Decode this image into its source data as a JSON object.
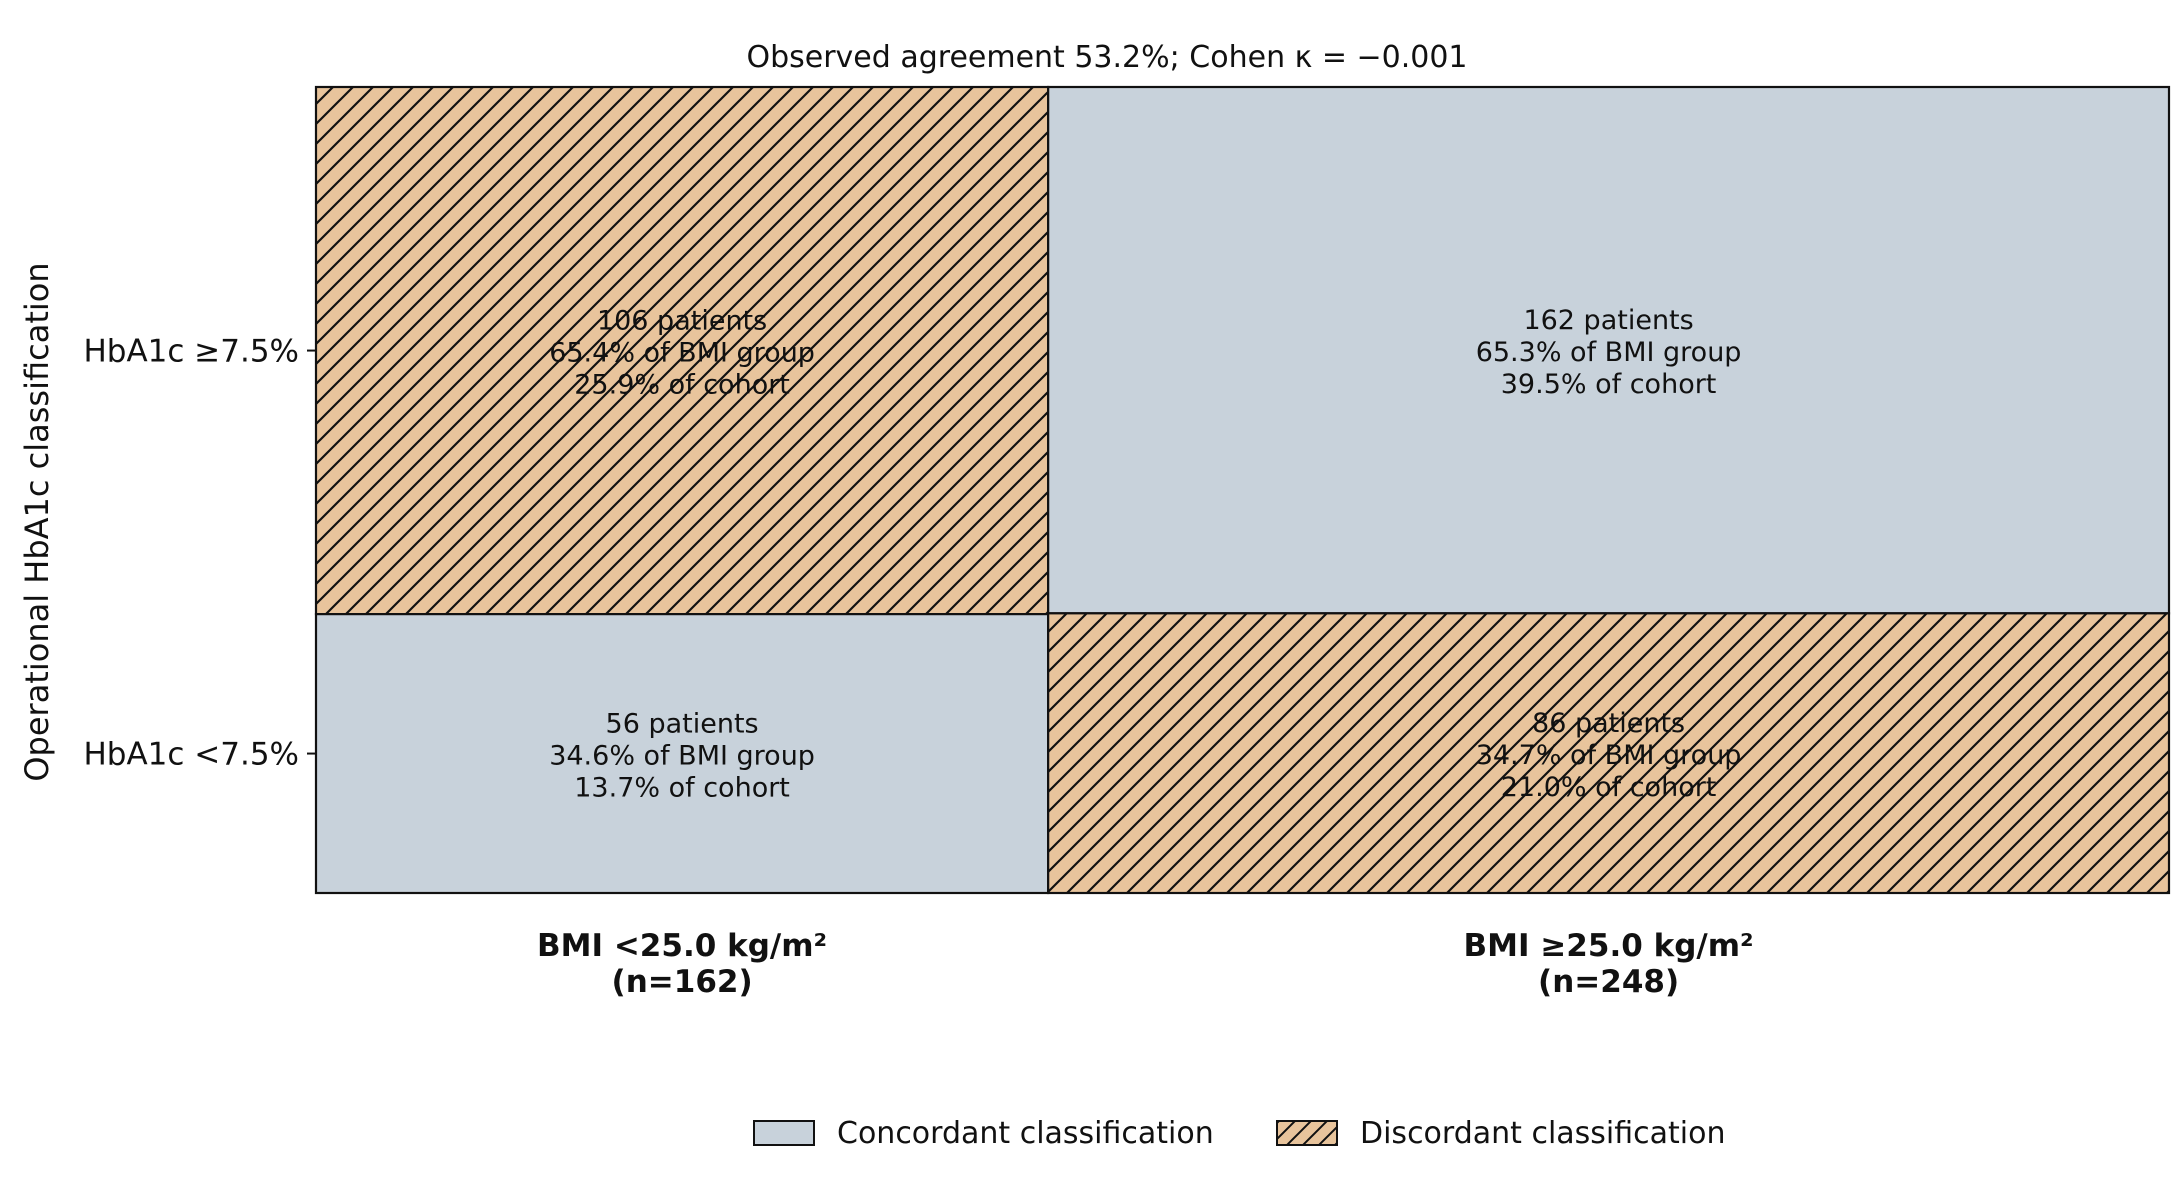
{
  "chart_data": {
    "type": "mosaic",
    "title": "Observed agreement 53.2%; Cohen κ = −0.001",
    "ylabel": "Operational HbA1c classification",
    "columns": [
      {
        "label": "BMI <25.0 kg/m²",
        "n_label": "(n=162)",
        "n": 162
      },
      {
        "label": "BMI ≥25.0 kg/m²",
        "n_label": "(n=248)",
        "n": 248
      }
    ],
    "rows": [
      "HbA1c ≥7.5%",
      "HbA1c <7.5%"
    ],
    "cells": [
      {
        "col": 0,
        "row": 0,
        "count": 106,
        "fraction": 0.654,
        "status": "discordant",
        "lines": [
          "106 patients",
          "65.4% of BMI group",
          "25.9% of cohort"
        ]
      },
      {
        "col": 0,
        "row": 1,
        "count": 56,
        "fraction": 0.346,
        "status": "concordant",
        "lines": [
          "56 patients",
          "34.6% of BMI group",
          "13.7% of cohort"
        ]
      },
      {
        "col": 1,
        "row": 0,
        "count": 162,
        "fraction": 0.653,
        "status": "concordant",
        "lines": [
          "162 patients",
          "65.3% of BMI group",
          "39.5% of cohort"
        ]
      },
      {
        "col": 1,
        "row": 1,
        "count": 86,
        "fraction": 0.347,
        "status": "discordant",
        "lines": [
          "86 patients",
          "34.7% of BMI group",
          "21.0% of cohort"
        ]
      }
    ],
    "legend": [
      {
        "key": "concordant",
        "label": "Concordant classification",
        "color": "#c8d2db",
        "hatch": false
      },
      {
        "key": "discordant",
        "label": "Discordant classification",
        "color": "#e8c49c",
        "hatch": true
      }
    ],
    "legend_position": "bottom"
  }
}
